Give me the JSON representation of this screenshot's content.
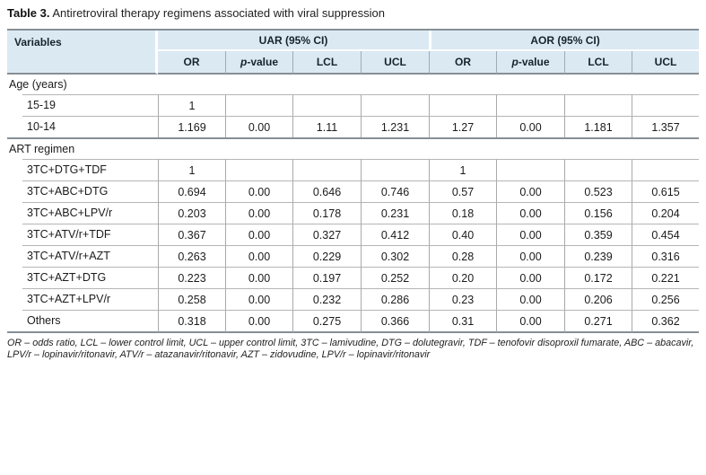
{
  "title": {
    "label": "Table 3.",
    "text": " Antiretroviral therapy regimens associated with viral suppression"
  },
  "table": {
    "variables_header": "Variables",
    "group_headers": [
      "UAR (95% CI)",
      "AOR (95% CI)"
    ],
    "sub_headers": [
      "OR",
      "p-value",
      "LCL",
      "UCL",
      "OR",
      "p-value",
      "LCL",
      "UCL"
    ],
    "sections": [
      {
        "label": "Age (years)",
        "rows": [
          {
            "variable": "15-19",
            "values": [
              "1",
              "",
              "",
              "",
              "",
              "",
              "",
              ""
            ]
          },
          {
            "variable": "10-14",
            "values": [
              "1.169",
              "0.00",
              "1.11",
              "1.231",
              "1.27",
              "0.00",
              "1.181",
              "1.357"
            ]
          }
        ]
      },
      {
        "label": "ART regimen",
        "rows": [
          {
            "variable": "3TC+DTG+TDF",
            "values": [
              "1",
              "",
              "",
              "",
              "1",
              "",
              "",
              ""
            ]
          },
          {
            "variable": "3TC+ABC+DTG",
            "values": [
              "0.694",
              "0.00",
              "0.646",
              "0.746",
              "0.57",
              "0.00",
              "0.523",
              "0.615"
            ]
          },
          {
            "variable": "3TC+ABC+LPV/r",
            "values": [
              "0.203",
              "0.00",
              "0.178",
              "0.231",
              "0.18",
              "0.00",
              "0.156",
              "0.204"
            ]
          },
          {
            "variable": "3TC+ATV/r+TDF",
            "values": [
              "0.367",
              "0.00",
              "0.327",
              "0.412",
              "0.40",
              "0.00",
              "0.359",
              "0.454"
            ]
          },
          {
            "variable": "3TC+ATV/r+AZT",
            "values": [
              "0.263",
              "0.00",
              "0.229",
              "0.302",
              "0.28",
              "0.00",
              "0.239",
              "0.316"
            ]
          },
          {
            "variable": "3TC+AZT+DTG",
            "values": [
              "0.223",
              "0.00",
              "0.197",
              "0.252",
              "0.20",
              "0.00",
              "0.172",
              "0.221"
            ]
          },
          {
            "variable": "3TC+AZT+LPV/r",
            "values": [
              "0.258",
              "0.00",
              "0.232",
              "0.286",
              "0.23",
              "0.00",
              "0.206",
              "0.256"
            ]
          },
          {
            "variable": "Others",
            "values": [
              "0.318",
              "0.00",
              "0.275",
              "0.366",
              "0.31",
              "0.00",
              "0.271",
              "0.362"
            ]
          }
        ]
      }
    ],
    "footnote": "OR – odds ratio, LCL – lower control limit, UCL – upper control limit, 3TC – lamivudine, DTG – dolutegravir, TDF – tenofovir disoproxil fumarate, ABC – abacavir, LPV/r – lopinavir/ritonavir, ATV/r – atazanavir/ritonavir, AZT – zidovudine, LPV/r – lopinavir/ritonavir"
  },
  "colors": {
    "header_bg": "#dbe9f3",
    "dark_rule": "#878f95",
    "light_rule": "#b5b5b5",
    "column_rule": "#a9a9a9"
  }
}
